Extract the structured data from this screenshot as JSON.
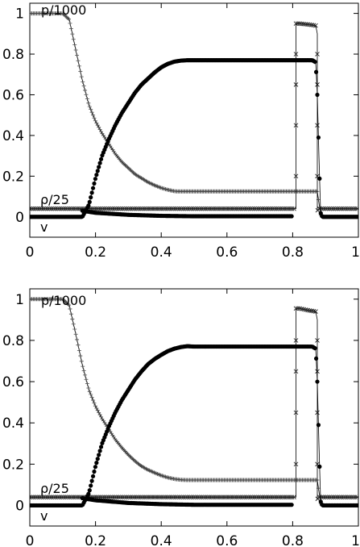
{
  "chart_data": [
    {
      "type": "line",
      "xlim": [
        0,
        1
      ],
      "ylim": [
        -0.1,
        1.05
      ],
      "xticks": [
        "0",
        "0.2",
        "0.4",
        "0.6",
        "0.8",
        "1"
      ],
      "yticks": [
        "0",
        "0.2",
        "0.4",
        "0.6",
        "0.8",
        "1"
      ],
      "grid": false,
      "series": [
        {
          "name": "p/1000",
          "marker": "plus",
          "points": [
            [
              0,
              1
            ],
            [
              0.1,
              1
            ],
            [
              0.12,
              0.97
            ],
            [
              0.14,
              0.82
            ],
            [
              0.16,
              0.67
            ],
            [
              0.18,
              0.55
            ],
            [
              0.2,
              0.47
            ],
            [
              0.22,
              0.41
            ],
            [
              0.24,
              0.36
            ],
            [
              0.26,
              0.31
            ],
            [
              0.28,
              0.27
            ],
            [
              0.3,
              0.24
            ],
            [
              0.32,
              0.21
            ],
            [
              0.34,
              0.19
            ],
            [
              0.36,
              0.17
            ],
            [
              0.38,
              0.155
            ],
            [
              0.4,
              0.142
            ],
            [
              0.42,
              0.133
            ],
            [
              0.44,
              0.126
            ],
            [
              0.45,
              0.125
            ],
            [
              0.6,
              0.125
            ],
            [
              0.7,
              0.125
            ],
            [
              0.8,
              0.125
            ],
            [
              0.86,
              0.125
            ],
            [
              0.875,
              0.125
            ],
            [
              0.885,
              0.01
            ],
            [
              0.89,
              0
            ],
            [
              1,
              0
            ]
          ]
        },
        {
          "name": "ρ/25",
          "marker": "cross",
          "points": [
            [
              0,
              0.04
            ],
            [
              0.8,
              0.04
            ],
            [
              0.81,
              0.04
            ],
            [
              0.81,
              0.95
            ],
            [
              0.82,
              0.95
            ],
            [
              0.85,
              0.945
            ],
            [
              0.87,
              0.94
            ],
            [
              0.875,
              0.9
            ],
            [
              0.875,
              0.03
            ],
            [
              0.88,
              0.04
            ],
            [
              1,
              0.04
            ]
          ]
        },
        {
          "name": "v",
          "marker": "circle",
          "points": [
            [
              0,
              0
            ],
            [
              0.16,
              0
            ],
            [
              0.18,
              0.06
            ],
            [
              0.2,
              0.19
            ],
            [
              0.22,
              0.3
            ],
            [
              0.24,
              0.38
            ],
            [
              0.26,
              0.45
            ],
            [
              0.28,
              0.51
            ],
            [
              0.3,
              0.56
            ],
            [
              0.32,
              0.61
            ],
            [
              0.34,
              0.65
            ],
            [
              0.36,
              0.68
            ],
            [
              0.38,
              0.71
            ],
            [
              0.4,
              0.735
            ],
            [
              0.42,
              0.752
            ],
            [
              0.44,
              0.763
            ],
            [
              0.46,
              0.768
            ],
            [
              0.48,
              0.77
            ],
            [
              0.6,
              0.77
            ],
            [
              0.7,
              0.77
            ],
            [
              0.8,
              0.77
            ],
            [
              0.86,
              0.77
            ],
            [
              0.87,
              0.76
            ],
            [
              0.875,
              0.6
            ],
            [
              0.88,
              0.3
            ],
            [
              0.885,
              0.02
            ],
            [
              0.89,
              0
            ],
            [
              1,
              0
            ]
          ]
        },
        {
          "name": "",
          "marker": "circle",
          "points": [
            [
              0.16,
              0.03
            ],
            [
              0.2,
              0.02
            ],
            [
              0.3,
              0.01
            ],
            [
              0.4,
              0.005
            ],
            [
              0.5,
              0.003
            ],
            [
              0.7,
              0.003
            ],
            [
              0.8,
              0.003
            ]
          ]
        }
      ]
    },
    {
      "type": "line",
      "xlim": [
        0,
        1
      ],
      "ylim": [
        -0.1,
        1.05
      ],
      "xticks": [
        "0",
        "0.2",
        "0.4",
        "0.6",
        "0.8",
        "1"
      ],
      "yticks": [
        "0",
        "0.2",
        "0.4",
        "0.6",
        "0.8",
        "1"
      ],
      "grid": false,
      "series": [
        {
          "name": "p/1000",
          "marker": "plus",
          "points": [
            [
              0,
              1
            ],
            [
              0.1,
              1
            ],
            [
              0.12,
              0.97
            ],
            [
              0.14,
              0.83
            ],
            [
              0.16,
              0.68
            ],
            [
              0.18,
              0.56
            ],
            [
              0.2,
              0.48
            ],
            [
              0.22,
              0.42
            ],
            [
              0.24,
              0.37
            ],
            [
              0.26,
              0.32
            ],
            [
              0.28,
              0.28
            ],
            [
              0.3,
              0.245
            ],
            [
              0.32,
              0.215
            ],
            [
              0.34,
              0.19
            ],
            [
              0.36,
              0.172
            ],
            [
              0.38,
              0.158
            ],
            [
              0.4,
              0.145
            ],
            [
              0.42,
              0.135
            ],
            [
              0.44,
              0.128
            ],
            [
              0.46,
              0.124
            ],
            [
              0.48,
              0.123
            ],
            [
              0.6,
              0.123
            ],
            [
              0.7,
              0.123
            ],
            [
              0.8,
              0.123
            ],
            [
              0.87,
              0.123
            ],
            [
              0.875,
              0.123
            ],
            [
              0.885,
              0.01
            ],
            [
              0.89,
              0
            ],
            [
              1,
              0
            ]
          ]
        },
        {
          "name": "ρ/25",
          "marker": "cross",
          "points": [
            [
              0,
              0.04
            ],
            [
              0.8,
              0.04
            ],
            [
              0.81,
              0.04
            ],
            [
              0.81,
              0.955
            ],
            [
              0.82,
              0.955
            ],
            [
              0.85,
              0.945
            ],
            [
              0.87,
              0.94
            ],
            [
              0.875,
              0.9
            ],
            [
              0.875,
              0.03
            ],
            [
              0.88,
              0.04
            ],
            [
              1,
              0.04
            ]
          ]
        },
        {
          "name": "v",
          "marker": "circle",
          "points": [
            [
              0,
              0
            ],
            [
              0.16,
              0
            ],
            [
              0.18,
              0.06
            ],
            [
              0.2,
              0.19
            ],
            [
              0.22,
              0.3
            ],
            [
              0.24,
              0.38
            ],
            [
              0.26,
              0.45
            ],
            [
              0.28,
              0.51
            ],
            [
              0.3,
              0.56
            ],
            [
              0.32,
              0.61
            ],
            [
              0.34,
              0.65
            ],
            [
              0.36,
              0.685
            ],
            [
              0.38,
              0.71
            ],
            [
              0.4,
              0.73
            ],
            [
              0.42,
              0.748
            ],
            [
              0.44,
              0.76
            ],
            [
              0.46,
              0.768
            ],
            [
              0.48,
              0.772
            ],
            [
              0.5,
              0.77
            ],
            [
              0.6,
              0.77
            ],
            [
              0.7,
              0.77
            ],
            [
              0.8,
              0.77
            ],
            [
              0.86,
              0.77
            ],
            [
              0.87,
              0.76
            ],
            [
              0.875,
              0.6
            ],
            [
              0.88,
              0.3
            ],
            [
              0.885,
              0.02
            ],
            [
              0.89,
              0
            ],
            [
              1,
              0
            ]
          ]
        },
        {
          "name": "",
          "marker": "circle",
          "points": [
            [
              0.16,
              0.035
            ],
            [
              0.2,
              0.025
            ],
            [
              0.3,
              0.012
            ],
            [
              0.4,
              0.006
            ],
            [
              0.5,
              0.003
            ],
            [
              0.7,
              0.003
            ],
            [
              0.8,
              0.003
            ]
          ]
        }
      ]
    }
  ]
}
